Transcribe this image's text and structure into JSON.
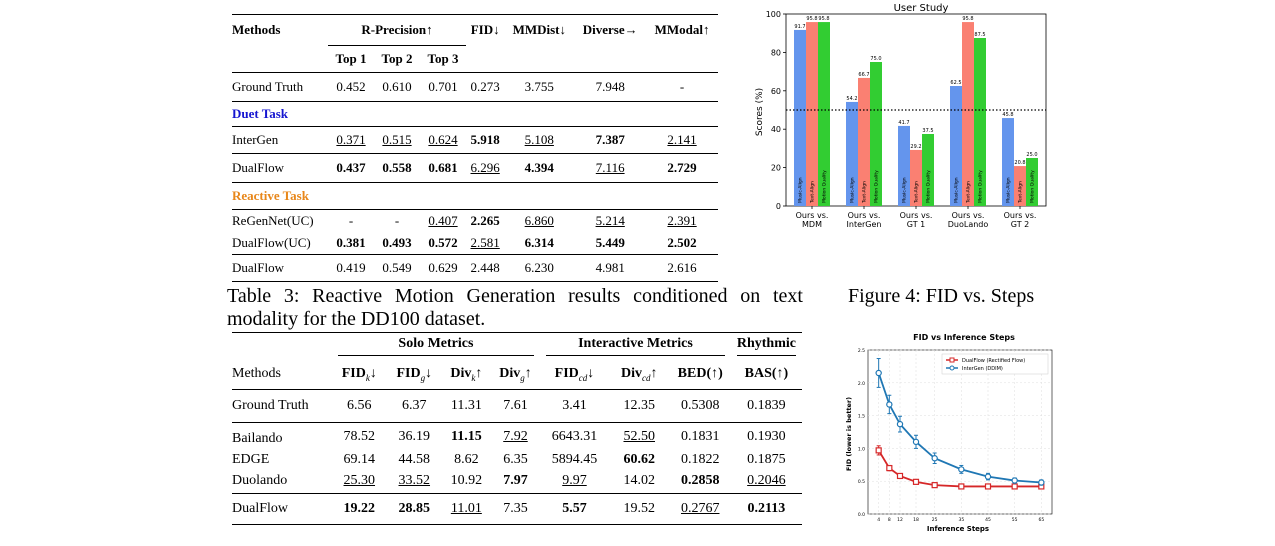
{
  "table1": {
    "headers": {
      "methods": "Methods",
      "rprec": "R-Precision↑",
      "top1": "Top 1",
      "top2": "Top 2",
      "top3": "Top 3",
      "fid": "FID↓",
      "mmdist": "MMDist↓",
      "diverse": "Diverse→",
      "mmodal": "MModal↑"
    },
    "gt": [
      "Ground Truth",
      "0.452",
      "0.610",
      "0.701",
      "0.273",
      "3.755",
      "7.948",
      "-"
    ],
    "duet_label": "Duet Task",
    "intergen": [
      "InterGen",
      "0.371",
      "0.515",
      "0.624",
      "5.918",
      "5.108",
      "7.387",
      "2.141"
    ],
    "dualflow_duet": [
      "DualFlow",
      "0.437",
      "0.558",
      "0.681",
      "6.296",
      "4.394",
      "7.116",
      "2.729"
    ],
    "reactive_label": "Reactive Task",
    "regennet": [
      "ReGenNet(UC)",
      "-",
      "-",
      "0.407",
      "2.265",
      "6.860",
      "5.214",
      "2.391"
    ],
    "dualflow_uc": [
      "DualFlow(UC)",
      "0.381",
      "0.493",
      "0.572",
      "2.581",
      "6.314",
      "5.449",
      "2.502"
    ],
    "dualflow_react": [
      "DualFlow",
      "0.419",
      "0.549",
      "0.629",
      "2.448",
      "6.230",
      "4.981",
      "2.616"
    ]
  },
  "caption3": "Table 3: Reactive Motion Generation results conditioned on text modality for the DD100 dataset.",
  "caption4": "Figure 4: FID vs. Steps",
  "table3": {
    "groups": {
      "solo": "Solo Metrics",
      "interactive": "Interactive Metrics",
      "rhythmic": "Rhythmic"
    },
    "headers": {
      "methods": "Methods",
      "fidk": "FID",
      "fidk_sub": "k",
      "fidk_arrow": "↓",
      "fidg": "FID",
      "fidg_sub": "g",
      "fidg_arrow": "↓",
      "divk": "Div",
      "divk_sub": "k",
      "divk_arrow": "↑",
      "divg": "Div",
      "divg_sub": "g",
      "divg_arrow": "↑",
      "fidcd": "FID",
      "fidcd_sub": "cd",
      "fidcd_arrow": "↓",
      "divcd": "Div",
      "divcd_sub": "cd",
      "divcd_arrow": "↑",
      "bed": "BED(↑)",
      "bas": "BAS(↑)"
    },
    "gt": [
      "Ground Truth",
      "6.56",
      "6.37",
      "11.31",
      "7.61",
      "3.41",
      "12.35",
      "0.5308",
      "0.1839"
    ],
    "bailando": [
      "Bailando",
      "78.52",
      "36.19",
      "11.15",
      "7.92",
      "6643.31",
      "52.50",
      "0.1831",
      "0.1930"
    ],
    "edge": [
      "EDGE",
      "69.14",
      "44.58",
      "8.62",
      "6.35",
      "5894.45",
      "60.62",
      "0.1822",
      "0.1875"
    ],
    "duolando": [
      "Duolando",
      "25.30",
      "33.52",
      "10.92",
      "7.97",
      "9.97",
      "14.02",
      "0.2858",
      "0.2046"
    ],
    "dualflow": [
      "DualFlow",
      "19.22",
      "28.85",
      "11.01",
      "7.35",
      "5.57",
      "19.52",
      "0.2767",
      "0.2113"
    ]
  },
  "chart_data": [
    {
      "type": "bar",
      "title": "User Study",
      "ylabel": "Scores (%)",
      "ylim": [
        0,
        100
      ],
      "yticks": [
        0,
        20,
        40,
        60,
        80,
        100
      ],
      "reference_line": 50,
      "categories": [
        "Ours vs.\nMDM",
        "Ours vs.\nInterGen",
        "Ours vs.\nGT 1",
        "Ours vs.\nDuoLando",
        "Ours vs.\nGT 2"
      ],
      "series": [
        {
          "name": "Music-Align",
          "color": "#6495ED",
          "values": [
            91.7,
            54.2,
            41.7,
            62.5,
            45.8
          ]
        },
        {
          "name": "Text-Align",
          "color": "#FA8072",
          "values": [
            95.8,
            66.7,
            29.2,
            95.8,
            20.8
          ]
        },
        {
          "name": "Motion Quality",
          "color": "#32CD32",
          "values": [
            95.8,
            75.0,
            37.5,
            87.5,
            25.0
          ]
        }
      ]
    },
    {
      "type": "line",
      "title": "FID vs Inference Steps",
      "xlabel": "Inference Steps",
      "ylabel": "FID (lower is better)",
      "xticks": [
        4,
        8,
        12,
        18,
        25,
        35,
        45,
        55,
        65
      ],
      "yticks": [
        0.0,
        0.5,
        1.0,
        1.5,
        2.0,
        2.5
      ],
      "ylim": [
        0,
        2.5
      ],
      "xlim": [
        0,
        69
      ],
      "legend_position": "top-right",
      "series": [
        {
          "name": "DualFlow (Rectified Flow)",
          "color": "#d62728",
          "x": [
            4,
            8,
            12,
            18,
            25,
            35,
            45,
            55,
            65
          ],
          "y": [
            0.97,
            0.7,
            0.58,
            0.49,
            0.44,
            0.42,
            0.42,
            0.42,
            0.42
          ],
          "err": [
            0.07,
            0.04,
            0.03,
            0.02,
            0.02,
            0.02,
            0.02,
            0.02,
            0.02
          ]
        },
        {
          "name": "InterGen (DDIM)",
          "color": "#1f77b4",
          "x": [
            4,
            8,
            12,
            18,
            25,
            35,
            45,
            55,
            65
          ],
          "y": [
            2.15,
            1.67,
            1.37,
            1.1,
            0.85,
            0.68,
            0.57,
            0.51,
            0.48
          ],
          "err": [
            0.22,
            0.14,
            0.12,
            0.1,
            0.08,
            0.06,
            0.05,
            0.04,
            0.04
          ]
        }
      ]
    }
  ]
}
